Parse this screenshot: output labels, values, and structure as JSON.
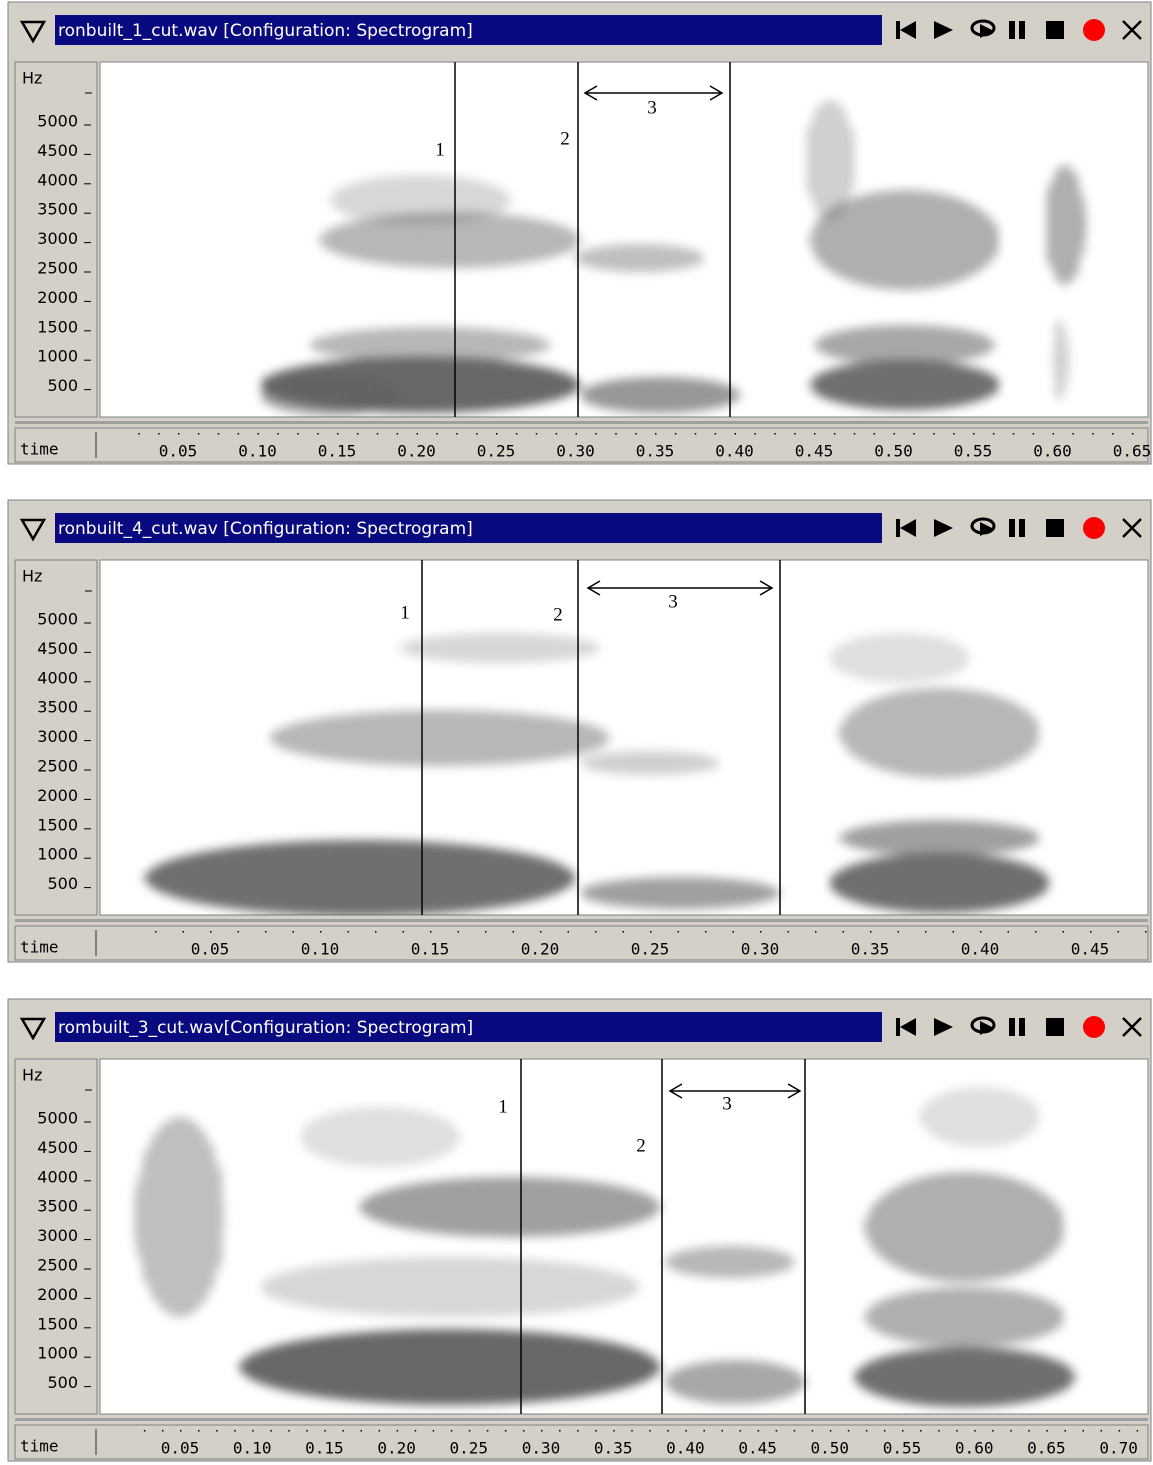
{
  "windows": [
    {
      "title": "ronbuilt_1_cut.wav [Configuration: Spectrogram]",
      "y_label": "Hz",
      "y_ticks": [
        5000,
        4500,
        4000,
        3500,
        3000,
        2500,
        2000,
        1500,
        1000,
        500
      ],
      "x_label": "time",
      "x_ticks": [
        "0.05",
        "0.10",
        "0.15",
        "0.20",
        "0.25",
        "0.30",
        "0.35",
        "0.40",
        "0.45",
        "0.50",
        "0.55",
        "0.60",
        "0.65"
      ],
      "markers": [
        "1",
        "2",
        "3"
      ]
    },
    {
      "title": "ronbuilt_4_cut.wav [Configuration: Spectrogram]",
      "y_label": "Hz",
      "y_ticks": [
        5000,
        4500,
        4000,
        3500,
        3000,
        2500,
        2000,
        1500,
        1000,
        500
      ],
      "x_label": "time",
      "x_ticks": [
        "0.05",
        "0.10",
        "0.15",
        "0.20",
        "0.25",
        "0.30",
        "0.35",
        "0.40",
        "0.45"
      ],
      "markers": [
        "1",
        "2",
        "3"
      ]
    },
    {
      "title": "rombuilt_3_cut.wav[Configuration: Spectrogram]",
      "y_label": "Hz",
      "y_ticks": [
        5000,
        4500,
        4000,
        3500,
        3000,
        2500,
        2000,
        1500,
        1000,
        500
      ],
      "x_label": "time",
      "x_ticks": [
        "0.05",
        "0.10",
        "0.15",
        "0.20",
        "0.25",
        "0.30",
        "0.35",
        "0.40",
        "0.45",
        "0.50",
        "0.55",
        "0.60",
        "0.65",
        "0.70"
      ],
      "markers": [
        "1",
        "2",
        "3"
      ]
    }
  ]
}
